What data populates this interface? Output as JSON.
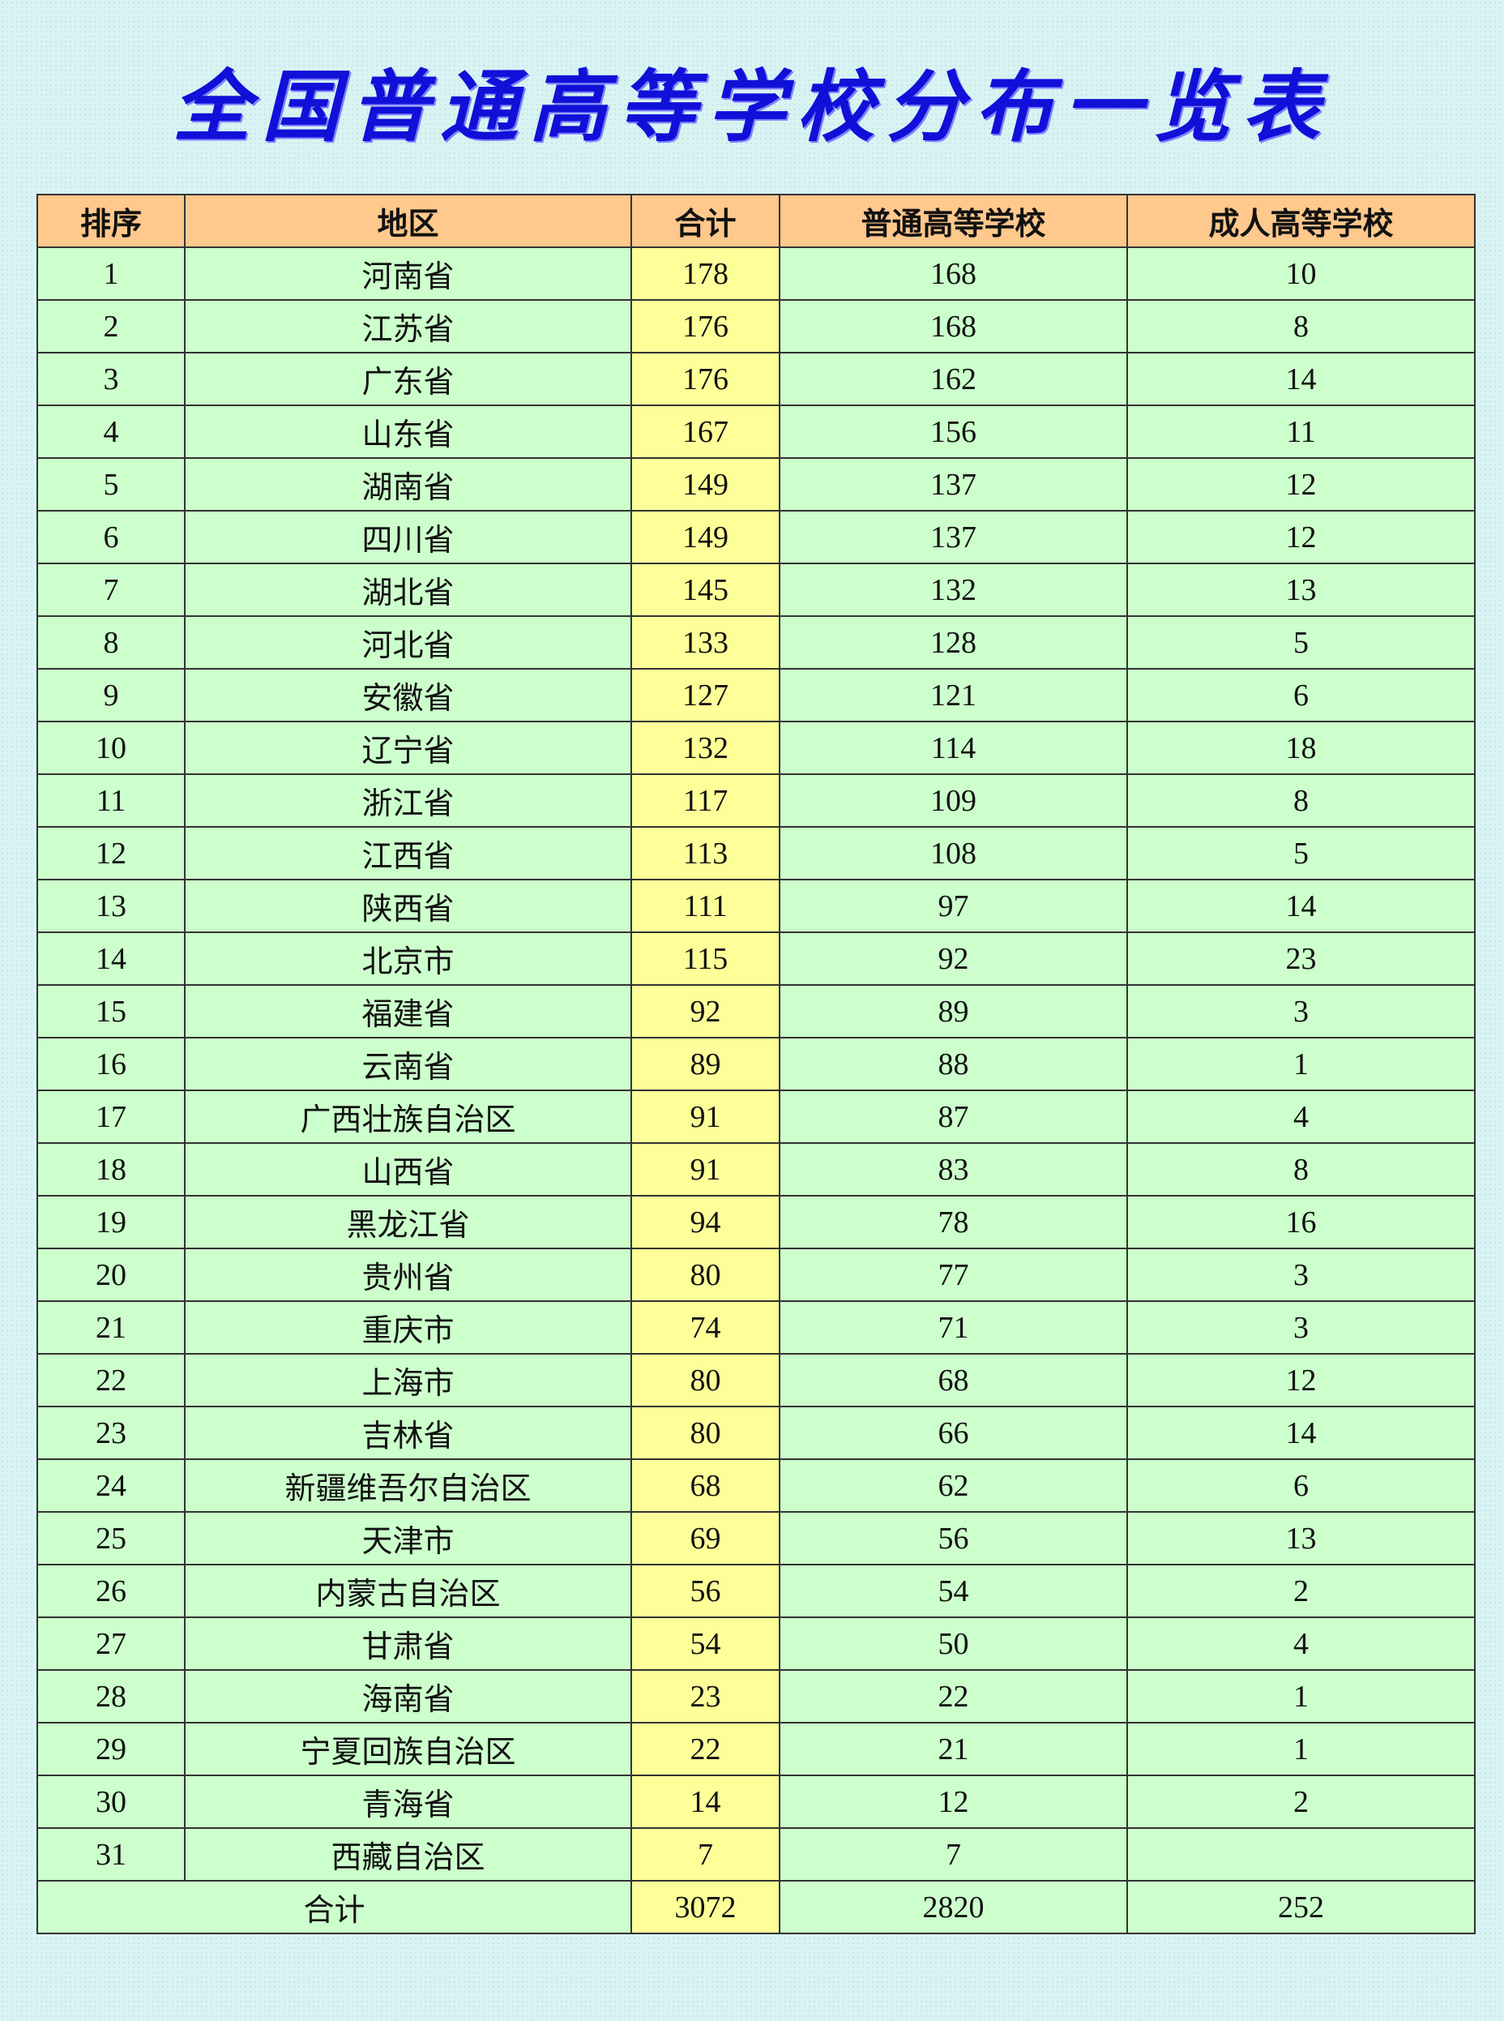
{
  "header": {
    "title": "全国普通高等学校分布一览表"
  },
  "table": {
    "columns": [
      "排序",
      "地区",
      "合计",
      "普通高等学校",
      "成人高等学校"
    ],
    "rows": [
      [
        1,
        "河南省",
        178,
        168,
        10
      ],
      [
        2,
        "江苏省",
        176,
        168,
        8
      ],
      [
        3,
        "广东省",
        176,
        162,
        14
      ],
      [
        4,
        "山东省",
        167,
        156,
        11
      ],
      [
        5,
        "湖南省",
        149,
        137,
        12
      ],
      [
        6,
        "四川省",
        149,
        137,
        12
      ],
      [
        7,
        "湖北省",
        145,
        132,
        13
      ],
      [
        8,
        "河北省",
        133,
        128,
        5
      ],
      [
        9,
        "安徽省",
        127,
        121,
        6
      ],
      [
        10,
        "辽宁省",
        132,
        114,
        18
      ],
      [
        11,
        "浙江省",
        117,
        109,
        8
      ],
      [
        12,
        "江西省",
        113,
        108,
        5
      ],
      [
        13,
        "陕西省",
        111,
        97,
        14
      ],
      [
        14,
        "北京市",
        115,
        92,
        23
      ],
      [
        15,
        "福建省",
        92,
        89,
        3
      ],
      [
        16,
        "云南省",
        89,
        88,
        1
      ],
      [
        17,
        "广西壮族自治区",
        91,
        87,
        4
      ],
      [
        18,
        "山西省",
        91,
        83,
        8
      ],
      [
        19,
        "黑龙江省",
        94,
        78,
        16
      ],
      [
        20,
        "贵州省",
        80,
        77,
        3
      ],
      [
        21,
        "重庆市",
        74,
        71,
        3
      ],
      [
        22,
        "上海市",
        80,
        68,
        12
      ],
      [
        23,
        "吉林省",
        80,
        66,
        14
      ],
      [
        24,
        "新疆维吾尔自治区",
        68,
        62,
        6
      ],
      [
        25,
        "天津市",
        69,
        56,
        13
      ],
      [
        26,
        "内蒙古自治区",
        56,
        54,
        2
      ],
      [
        27,
        "甘肃省",
        54,
        50,
        4
      ],
      [
        28,
        "海南省",
        23,
        22,
        1
      ],
      [
        29,
        "宁夏回族自治区",
        22,
        21,
        1
      ],
      [
        30,
        "青海省",
        14,
        12,
        2
      ],
      [
        31,
        "西藏自治区",
        7,
        7,
        null
      ]
    ],
    "total": [
      "合计",
      3072,
      2820,
      252
    ]
  }
}
